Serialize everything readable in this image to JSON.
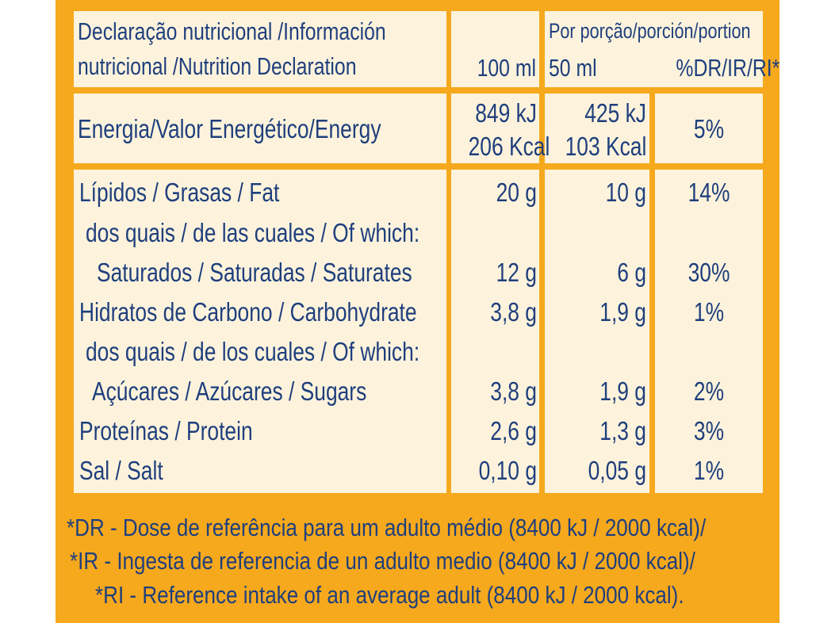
{
  "header": {
    "title_line1": "Declaração nutricional /Información",
    "title_line2": "nutricional /Nutrition Declaration",
    "col_100ml": "100 ml",
    "portion_label": "Por porção/porción/portion",
    "col_50ml": "50  ml",
    "col_dr": "%DR/IR/RI*"
  },
  "energy": {
    "label": "Energia/Valor Energético/Energy",
    "kj_100": "849 kJ",
    "kcal_100": "206 Kcal",
    "kj_50": "425 kJ",
    "kcal_50": "103 Kcal",
    "dr": "5%"
  },
  "rows": [
    {
      "label": "Lípidos / Grasas / Fat",
      "v100": "20 g",
      "v50": "10 g",
      "dr": "14%"
    },
    {
      "label": "dos quais / de las cuales / Of which:",
      "v100": "",
      "v50": "",
      "dr": ""
    },
    {
      "label": "Saturados / Saturadas / Saturates",
      "v100": "12 g",
      "v50": "6 g",
      "dr": "30%"
    },
    {
      "label": "Hidratos de Carbono / Carbohydrate",
      "v100": "3,8 g",
      "v50": "1,9 g",
      "dr": "1%"
    },
    {
      "label": "dos quais / de los cuales / Of which:",
      "v100": "",
      "v50": "",
      "dr": ""
    },
    {
      "label": "Açúcares / Azúcares / Sugars",
      "v100": "3,8 g",
      "v50": "1,9 g",
      "dr": "2%"
    },
    {
      "label": "Proteínas / Protein",
      "v100": "2,6 g",
      "v50": "1,3 g",
      "dr": "3%"
    },
    {
      "label": "Sal / Salt",
      "v100": "0,10 g",
      "v50": "0,05 g",
      "dr": "1%"
    }
  ],
  "footnotes": [
    "*DR - Dose de referência para um adulto médio (8400 kJ / 2000 kcal)/",
    "*IR - Ingesta de referencia de un adulto medio (8400 kJ / 2000 kcal)/",
    "*RI - Reference intake of an average adult (8400 kJ / 2000 kcal)."
  ],
  "colors": {
    "background": "#f6a91d",
    "cell": "#fdf3dc",
    "text": "#1f3f7d"
  }
}
